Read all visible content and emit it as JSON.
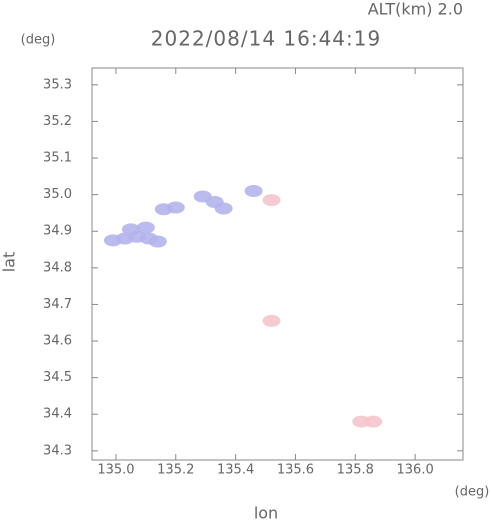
{
  "chart_data": {
    "type": "scatter",
    "title": "2022/08/14 16:44:19",
    "subtitle": "ALT(km) 2.0",
    "y_unit": "(deg)",
    "x_unit": "(deg)",
    "xlabel": "lon",
    "ylabel": "lat",
    "xlim": [
      134.92,
      136.16
    ],
    "ylim": [
      34.275,
      35.346
    ],
    "xticks": [
      {
        "value": 135,
        "label": "135.0"
      },
      135.2,
      135.4,
      135.6,
      135.8,
      {
        "value": 136,
        "label": "136.0"
      }
    ],
    "yticks": [
      34.3,
      34.4,
      34.5,
      34.6,
      34.7,
      34.8,
      34.9,
      {
        "value": 35,
        "label": "35.0"
      },
      35.1,
      35.2,
      35.3
    ],
    "series": [
      {
        "color": "#b4b4ec",
        "x": [
          134.99,
          135.03,
          135.07,
          135.11,
          135.14,
          135.05,
          135.1,
          135.16,
          135.2,
          135.29,
          135.33,
          135.36,
          135.46
        ],
        "values": [
          34.875,
          34.88,
          34.885,
          34.88,
          34.872,
          34.905,
          34.91,
          34.96,
          34.965,
          34.995,
          34.98,
          34.962,
          35.01
        ]
      },
      {
        "color": "#f4c4cc",
        "x": [
          135.52,
          135.82,
          135.86,
          135.52
        ],
        "values": [
          34.985,
          34.38,
          34.38,
          34.655
        ]
      }
    ]
  }
}
